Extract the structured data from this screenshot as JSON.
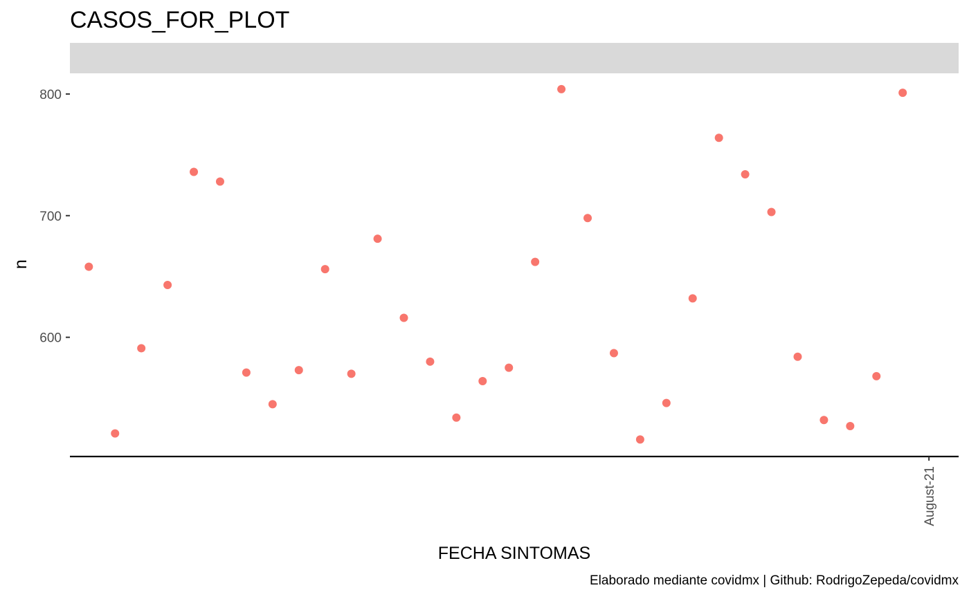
{
  "chart_data": {
    "type": "scatter",
    "title": "CASOS_FOR_PLOT",
    "xlabel": "FECHA SINTOMAS",
    "ylabel": "n",
    "caption": "Elaborado mediante covidmx | Github: RodrigoZepeda/covidmx",
    "x_tick_labels": [
      "August-21"
    ],
    "x_tick_index": [
      32
    ],
    "y_ticks": [
      600,
      700,
      800
    ],
    "ylim": [
      502,
      817
    ],
    "xlim": [
      -0.72,
      33.13
    ],
    "facet_strip": "",
    "point_color": "#F8766D",
    "grid": false,
    "points": [
      {
        "x": 0,
        "y": 658
      },
      {
        "x": 1,
        "y": 521
      },
      {
        "x": 2,
        "y": 591
      },
      {
        "x": 3,
        "y": 643
      },
      {
        "x": 4,
        "y": 736
      },
      {
        "x": 5,
        "y": 728
      },
      {
        "x": 6,
        "y": 571
      },
      {
        "x": 7,
        "y": 545
      },
      {
        "x": 8,
        "y": 573
      },
      {
        "x": 9,
        "y": 656
      },
      {
        "x": 10,
        "y": 570
      },
      {
        "x": 11,
        "y": 681
      },
      {
        "x": 12,
        "y": 616
      },
      {
        "x": 13,
        "y": 580
      },
      {
        "x": 14,
        "y": 534
      },
      {
        "x": 15,
        "y": 564
      },
      {
        "x": 16,
        "y": 575
      },
      {
        "x": 17,
        "y": 662
      },
      {
        "x": 18,
        "y": 804
      },
      {
        "x": 19,
        "y": 698
      },
      {
        "x": 20,
        "y": 587
      },
      {
        "x": 21,
        "y": 516
      },
      {
        "x": 22,
        "y": 546
      },
      {
        "x": 23,
        "y": 632
      },
      {
        "x": 24,
        "y": 764
      },
      {
        "x": 25,
        "y": 734
      },
      {
        "x": 26,
        "y": 703
      },
      {
        "x": 27,
        "y": 584
      },
      {
        "x": 28,
        "y": 532
      },
      {
        "x": 29,
        "y": 527
      },
      {
        "x": 30,
        "y": 568
      },
      {
        "x": 31,
        "y": 801
      }
    ]
  }
}
